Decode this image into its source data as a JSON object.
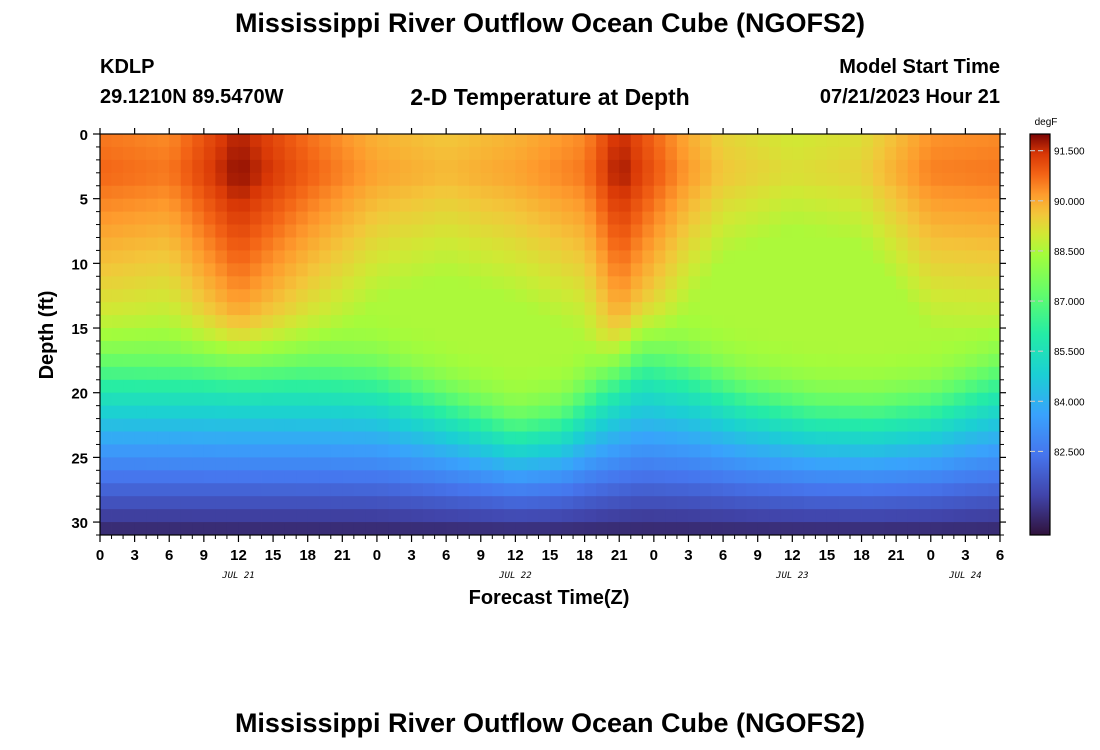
{
  "header": {
    "title": "Mississippi River Outflow Ocean Cube (NGOFS2)",
    "station": "KDLP",
    "coordinates": "29.1210N  89.5470W",
    "subtitle": "2-D Temperature at Depth",
    "model_start_label": "Model Start Time",
    "model_start_value": "07/21/2023 Hour 21"
  },
  "footer": {
    "title": "Mississippi River Outflow Ocean Cube (NGOFS2)"
  },
  "chart_data": {
    "type": "heatmap",
    "title": "2-D Temperature at Depth",
    "xlabel": "Forecast Time(Z)",
    "ylabel": "Depth (ft)",
    "x_tick_labels": [
      "0",
      "3",
      "6",
      "9",
      "12",
      "15",
      "18",
      "21",
      "0",
      "3",
      "6",
      "9",
      "12",
      "15",
      "18",
      "21",
      "0",
      "3",
      "6",
      "9",
      "12",
      "15",
      "18",
      "21",
      "0",
      "3",
      "6"
    ],
    "date_labels": [
      {
        "label": "JUL 21",
        "hour": 12
      },
      {
        "label": "JUL 22",
        "hour": 36
      },
      {
        "label": "JUL 23",
        "hour": 60
      },
      {
        "label": "JUL 24",
        "hour": 75
      }
    ],
    "x_range_hours": [
      0,
      78
    ],
    "y_ticks": [
      "0",
      "5",
      "10",
      "15",
      "20",
      "25",
      "30"
    ],
    "y_range_ft": [
      0,
      31
    ],
    "colorbar": {
      "unit": "degF",
      "min": 80.0,
      "max": 92.0,
      "ticks": [
        "91.500",
        "90.000",
        "88.500",
        "87.000",
        "85.500",
        "84.000",
        "82.500"
      ],
      "tick_values": [
        91.5,
        90.0,
        88.5,
        87.0,
        85.5,
        84.0,
        82.5
      ]
    },
    "thermocline_depth_ft": [
      {
        "hour": 0,
        "depth": 17.0
      },
      {
        "hour": 20,
        "depth": 17.2
      },
      {
        "hour": 24,
        "depth": 17.5
      },
      {
        "hour": 31,
        "depth": 20.0
      },
      {
        "hour": 36,
        "depth": 21.8
      },
      {
        "hour": 40,
        "depth": 21.0
      },
      {
        "hour": 44,
        "depth": 18.0
      },
      {
        "hour": 47,
        "depth": 16.0
      },
      {
        "hour": 51,
        "depth": 17.0
      },
      {
        "hour": 56,
        "depth": 19.0
      },
      {
        "hour": 62,
        "depth": 20.3
      },
      {
        "hour": 67,
        "depth": 20.5
      },
      {
        "hour": 72,
        "depth": 19.8
      },
      {
        "hour": 78,
        "depth": 17.5
      }
    ],
    "surface_temperature_degF": [
      {
        "hour": 0,
        "value": 90.8
      },
      {
        "hour": 6,
        "value": 90.6
      },
      {
        "hour": 12,
        "value": 91.9
      },
      {
        "hour": 18,
        "value": 90.9
      },
      {
        "hour": 24,
        "value": 90.1
      },
      {
        "hour": 30,
        "value": 89.8
      },
      {
        "hour": 36,
        "value": 90.1
      },
      {
        "hour": 42,
        "value": 90.6
      },
      {
        "hour": 45,
        "value": 91.8
      },
      {
        "hour": 51,
        "value": 90.2
      },
      {
        "hour": 54,
        "value": 89.6
      },
      {
        "hour": 60,
        "value": 89.2
      },
      {
        "hour": 66,
        "value": 89.4
      },
      {
        "hour": 72,
        "value": 90.5
      },
      {
        "hour": 78,
        "value": 90.6
      }
    ],
    "bottom_temperature_degF": 80.4
  }
}
